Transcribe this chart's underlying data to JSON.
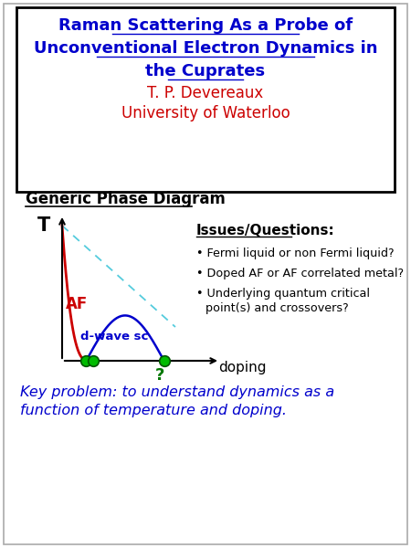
{
  "title_line1": "Raman Scattering As a Probe of",
  "title_line2": "Unconventional Electron Dynamics in",
  "title_line3": "the Cuprates",
  "title_color": "#0000cc",
  "author": "T. P. Devereaux",
  "affiliation": "University of Waterloo",
  "author_color": "#cc0000",
  "section_title": "Generic Phase Diagram",
  "issues_title": "Issues/Questions:",
  "issue1": "Fermi liquid or non Fermi liquid?",
  "issue2": "Doped AF or AF correlated metal?",
  "issue3a": "Underlying quantum critical",
  "issue3b": "point(s) and crossovers?",
  "af_label": "AF",
  "af_color": "#cc0000",
  "dwave_label": "d-wave sc",
  "dwave_color": "#0000cc",
  "question_mark": "?",
  "doping_label": "doping",
  "t_label": "T",
  "key_problem1": "Key problem: to understand dynamics as a",
  "key_problem2": "function of temperature and doping.",
  "key_problem_color": "#0000cc",
  "green_dot_color": "#00bb00",
  "bullet": "•"
}
